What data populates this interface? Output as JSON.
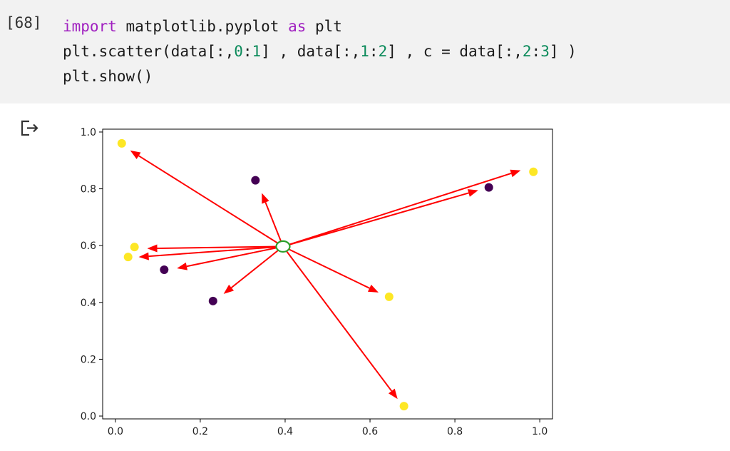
{
  "code_cell": {
    "execution_count": "[68]",
    "lines": [
      [
        {
          "t": "import",
          "c": "kw"
        },
        {
          "t": " matplotlib.pyplot ",
          "c": ""
        },
        {
          "t": "as",
          "c": "kw"
        },
        {
          "t": " plt",
          "c": ""
        }
      ],
      [
        {
          "t": "plt.scatter(data[:,",
          "c": ""
        },
        {
          "t": "0",
          "c": "num"
        },
        {
          "t": ":",
          "c": ""
        },
        {
          "t": "1",
          "c": "num"
        },
        {
          "t": "] , data[:,",
          "c": ""
        },
        {
          "t": "1",
          "c": "num"
        },
        {
          "t": ":",
          "c": ""
        },
        {
          "t": "2",
          "c": "num"
        },
        {
          "t": "] , c = data[:,",
          "c": ""
        },
        {
          "t": "2",
          "c": "num"
        },
        {
          "t": ":",
          "c": ""
        },
        {
          "t": "3",
          "c": "num"
        },
        {
          "t": "] )",
          "c": ""
        }
      ],
      [
        {
          "t": "plt.show()",
          "c": ""
        }
      ]
    ]
  },
  "output": {
    "icon": "output-arrow-icon"
  },
  "chart_data": {
    "type": "scatter",
    "xlim": [
      -0.03,
      1.03
    ],
    "ylim": [
      -0.01,
      1.01
    ],
    "xticks": [
      0.0,
      0.2,
      0.4,
      0.6,
      0.8,
      1.0
    ],
    "yticks": [
      0.0,
      0.2,
      0.4,
      0.6,
      0.8,
      1.0
    ],
    "xtick_labels": [
      "0.0",
      "0.2",
      "0.4",
      "0.6",
      "0.8",
      "1.0"
    ],
    "ytick_labels": [
      "0.0",
      "0.2",
      "0.4",
      "0.6",
      "0.8",
      "1.0"
    ],
    "points": [
      {
        "x": 0.015,
        "y": 0.96,
        "class": "yellow"
      },
      {
        "x": 0.045,
        "y": 0.595,
        "class": "yellow"
      },
      {
        "x": 0.03,
        "y": 0.56,
        "class": "yellow"
      },
      {
        "x": 0.115,
        "y": 0.515,
        "class": "purple"
      },
      {
        "x": 0.23,
        "y": 0.405,
        "class": "purple"
      },
      {
        "x": 0.33,
        "y": 0.83,
        "class": "purple"
      },
      {
        "x": 0.645,
        "y": 0.42,
        "class": "yellow"
      },
      {
        "x": 0.68,
        "y": 0.035,
        "class": "yellow"
      },
      {
        "x": 0.88,
        "y": 0.805,
        "class": "purple"
      },
      {
        "x": 0.985,
        "y": 0.86,
        "class": "yellow"
      }
    ],
    "query_point": {
      "x": 0.395,
      "y": 0.597
    },
    "arrows": [
      {
        "x": 0.035,
        "y": 0.935
      },
      {
        "x": 0.345,
        "y": 0.785
      },
      {
        "x": 0.955,
        "y": 0.865
      },
      {
        "x": 0.855,
        "y": 0.795
      },
      {
        "x": 0.075,
        "y": 0.59
      },
      {
        "x": 0.055,
        "y": 0.56
      },
      {
        "x": 0.145,
        "y": 0.52
      },
      {
        "x": 0.255,
        "y": 0.43
      },
      {
        "x": 0.62,
        "y": 0.435
      },
      {
        "x": 0.665,
        "y": 0.06
      }
    ],
    "colors": {
      "yellow": "#fde725",
      "purple": "#440154",
      "arrow": "#ff0000",
      "query": "#2ca02c"
    }
  }
}
